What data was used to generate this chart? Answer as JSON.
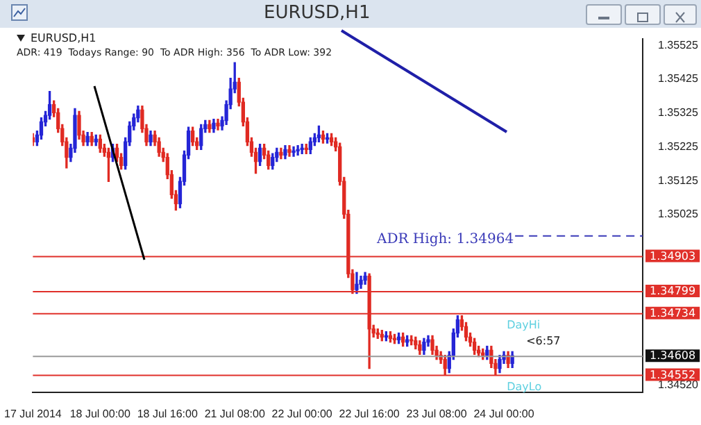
{
  "chart_data": {
    "type": "candlestick",
    "title": "EURUSD,H1",
    "subtitle": "ADR: 419  Todays Range: 90  To ADR High: 356  To ADR Low: 392",
    "categories": [
      "17 Jul 2014",
      null,
      null,
      null,
      null,
      null,
      null,
      null,
      null,
      null,
      null,
      null,
      null,
      null,
      null,
      null,
      "18 Jul 00:00",
      null,
      null,
      null,
      null,
      null,
      null,
      null,
      null,
      null,
      null,
      null,
      null,
      null,
      null,
      null,
      "18 Jul 16:00",
      null,
      null,
      null,
      null,
      null,
      null,
      null,
      null,
      null,
      null,
      null,
      null,
      null,
      null,
      null,
      "21 Jul 08:00",
      null,
      null,
      null,
      null,
      null,
      null,
      null,
      null,
      null,
      null,
      null,
      null,
      null,
      null,
      null,
      "22 Jul 00:00",
      null,
      null,
      null,
      null,
      null,
      null,
      null,
      null,
      null,
      null,
      null,
      null,
      null,
      null,
      null,
      "22 Jul 16:00",
      null,
      null,
      null,
      null,
      null,
      null,
      null,
      null,
      null,
      null,
      null,
      null,
      null,
      null,
      null,
      "23 Jul 08:00",
      null,
      null,
      null,
      null,
      null,
      null,
      null,
      null,
      null,
      null,
      null,
      null,
      null,
      null,
      null,
      "24 Jul 00:00",
      null,
      null,
      null,
      null,
      null,
      null,
      null,
      null,
      null,
      null,
      null,
      null,
      null,
      null,
      null,
      null,
      null,
      null,
      null,
      null,
      null,
      null,
      null,
      null,
      null,
      null,
      null,
      null,
      null,
      null,
      null,
      null,
      null
    ],
    "ohlc": [
      [
        1.35252,
        1.35264,
        1.35229,
        1.3524
      ],
      [
        1.3524,
        1.35272,
        1.35229,
        1.3526
      ],
      [
        1.3526,
        1.35311,
        1.35248,
        1.35299
      ],
      [
        1.35299,
        1.3533,
        1.35287,
        1.35318
      ],
      [
        1.35318,
        1.35389,
        1.35307,
        1.3535
      ],
      [
        1.3535,
        1.35361,
        1.35314,
        1.35326
      ],
      [
        1.35326,
        1.35338,
        1.35268,
        1.35279
      ],
      [
        1.35279,
        1.35291,
        1.35229,
        1.3524
      ],
      [
        1.3524,
        1.35252,
        1.35163,
        1.35194
      ],
      [
        1.35194,
        1.35233,
        1.35182,
        1.35221
      ],
      [
        1.35221,
        1.35338,
        1.35209,
        1.35318
      ],
      [
        1.35318,
        1.3533,
        1.35248,
        1.3526
      ],
      [
        1.3526,
        1.35272,
        1.35229,
        1.3524
      ],
      [
        1.3524,
        1.35268,
        1.35229,
        1.35256
      ],
      [
        1.35256,
        1.35268,
        1.35229,
        1.3524
      ],
      [
        1.3524,
        1.3526,
        1.35229,
        1.35248
      ],
      [
        1.35248,
        1.3526,
        1.35209,
        1.35221
      ],
      [
        1.35221,
        1.35233,
        1.35197,
        1.35209
      ],
      [
        1.35209,
        1.35221,
        1.35123,
        1.35194
      ],
      [
        1.35194,
        1.35233,
        1.35182,
        1.35221
      ],
      [
        1.35221,
        1.35233,
        1.35182,
        1.35194
      ],
      [
        1.35194,
        1.35205,
        1.35159,
        1.3517
      ],
      [
        1.3517,
        1.35252,
        1.35159,
        1.3524
      ],
      [
        1.3524,
        1.35299,
        1.35229,
        1.35287
      ],
      [
        1.35287,
        1.35322,
        1.35275,
        1.35311
      ],
      [
        1.35311,
        1.35346,
        1.35299,
        1.35334
      ],
      [
        1.35334,
        1.35346,
        1.35268,
        1.35279
      ],
      [
        1.35279,
        1.35291,
        1.35229,
        1.3524
      ],
      [
        1.3524,
        1.35272,
        1.35229,
        1.3526
      ],
      [
        1.3526,
        1.35272,
        1.35229,
        1.3524
      ],
      [
        1.3524,
        1.35252,
        1.35197,
        1.35209
      ],
      [
        1.35209,
        1.35221,
        1.35182,
        1.35194
      ],
      [
        1.35194,
        1.35205,
        1.35131,
        1.35143
      ],
      [
        1.35143,
        1.35155,
        1.35073,
        1.35084
      ],
      [
        1.35084,
        1.35096,
        1.35038,
        1.35057
      ],
      [
        1.35057,
        1.35135,
        1.35045,
        1.35123
      ],
      [
        1.35123,
        1.35213,
        1.35112,
        1.35201
      ],
      [
        1.35201,
        1.35283,
        1.3519,
        1.35272
      ],
      [
        1.35272,
        1.35283,
        1.35229,
        1.3524
      ],
      [
        1.3524,
        1.35252,
        1.35217,
        1.35229
      ],
      [
        1.35229,
        1.35291,
        1.35217,
        1.35279
      ],
      [
        1.35279,
        1.35303,
        1.35268,
        1.35291
      ],
      [
        1.35291,
        1.35303,
        1.35268,
        1.35279
      ],
      [
        1.35279,
        1.35307,
        1.35268,
        1.35295
      ],
      [
        1.35295,
        1.35307,
        1.35275,
        1.35287
      ],
      [
        1.35287,
        1.35314,
        1.35275,
        1.35303
      ],
      [
        1.35303,
        1.35361,
        1.35291,
        1.3535
      ],
      [
        1.3535,
        1.35428,
        1.35338,
        1.35396
      ],
      [
        1.35396,
        1.35474,
        1.35385,
        1.35416
      ],
      [
        1.35416,
        1.35428,
        1.35346,
        1.35357
      ],
      [
        1.35357,
        1.35369,
        1.35287,
        1.35299
      ],
      [
        1.35299,
        1.35311,
        1.35229,
        1.3524
      ],
      [
        1.3524,
        1.35252,
        1.35197,
        1.35209
      ],
      [
        1.35209,
        1.35221,
        1.35147,
        1.35182
      ],
      [
        1.35182,
        1.35233,
        1.3517,
        1.35221
      ],
      [
        1.35221,
        1.35233,
        1.3519,
        1.35201
      ],
      [
        1.35201,
        1.35213,
        1.35159,
        1.3517
      ],
      [
        1.3517,
        1.35205,
        1.35159,
        1.35194
      ],
      [
        1.35194,
        1.35221,
        1.35182,
        1.35209
      ],
      [
        1.35209,
        1.35221,
        1.3519,
        1.35201
      ],
      [
        1.35201,
        1.35229,
        1.3519,
        1.35217
      ],
      [
        1.35217,
        1.35229,
        1.35197,
        1.35209
      ],
      [
        1.35209,
        1.35225,
        1.35197,
        1.35213
      ],
      [
        1.35213,
        1.35229,
        1.35201,
        1.35217
      ],
      [
        1.35217,
        1.35233,
        1.35205,
        1.35221
      ],
      [
        1.35221,
        1.35233,
        1.35205,
        1.35217
      ],
      [
        1.35217,
        1.35252,
        1.35205,
        1.3524
      ],
      [
        1.3524,
        1.35264,
        1.35229,
        1.35252
      ],
      [
        1.35252,
        1.35287,
        1.3524,
        1.3526
      ],
      [
        1.3526,
        1.35272,
        1.35236,
        1.35248
      ],
      [
        1.35248,
        1.35264,
        1.35236,
        1.35252
      ],
      [
        1.35252,
        1.35264,
        1.35229,
        1.3524
      ],
      [
        1.3524,
        1.35252,
        1.35213,
        1.35225
      ],
      [
        1.35225,
        1.35236,
        1.35112,
        1.35123
      ],
      [
        1.35123,
        1.35135,
        1.35014,
        1.35026
      ],
      [
        1.35026,
        1.35038,
        1.34839,
        1.3485
      ],
      [
        1.3485,
        1.34862,
        1.34792,
        1.34803
      ],
      [
        1.34803,
        1.34854,
        1.34792,
        1.34819
      ],
      [
        1.34819,
        1.34843,
        1.34807,
        1.34831
      ],
      [
        1.34831,
        1.34854,
        1.34819,
        1.34843
      ],
      [
        1.34843,
        1.3485,
        1.3457,
        1.34687
      ],
      [
        1.34687,
        1.34698,
        1.34663,
        1.34675
      ],
      [
        1.34675,
        1.34687,
        1.34659,
        1.34671
      ],
      [
        1.34671,
        1.34683,
        1.34652,
        1.34663
      ],
      [
        1.34663,
        1.34679,
        1.34652,
        1.34667
      ],
      [
        1.34667,
        1.34679,
        1.34648,
        1.34659
      ],
      [
        1.34659,
        1.34671,
        1.34644,
        1.34655
      ],
      [
        1.34655,
        1.34675,
        1.34644,
        1.34663
      ],
      [
        1.34663,
        1.34675,
        1.34636,
        1.34648
      ],
      [
        1.34648,
        1.34667,
        1.34636,
        1.34655
      ],
      [
        1.34655,
        1.34667,
        1.3464,
        1.34652
      ],
      [
        1.34652,
        1.34663,
        1.34628,
        1.3464
      ],
      [
        1.3464,
        1.34652,
        1.34612,
        1.34624
      ],
      [
        1.34624,
        1.34659,
        1.34612,
        1.34648
      ],
      [
        1.34648,
        1.34667,
        1.34636,
        1.34655
      ],
      [
        1.34655,
        1.34667,
        1.34612,
        1.34624
      ],
      [
        1.34624,
        1.34636,
        1.34597,
        1.34609
      ],
      [
        1.34609,
        1.3462,
        1.34585,
        1.34597
      ],
      [
        1.34597,
        1.34609,
        1.3455,
        1.3457
      ],
      [
        1.3457,
        1.3462,
        1.34558,
        1.34609
      ],
      [
        1.34609,
        1.34687,
        1.34597,
        1.34675
      ],
      [
        1.34675,
        1.34726,
        1.34663,
        1.34714
      ],
      [
        1.34714,
        1.34726,
        1.34683,
        1.34694
      ],
      [
        1.34694,
        1.34706,
        1.34652,
        1.34663
      ],
      [
        1.34663,
        1.34675,
        1.34636,
        1.34648
      ],
      [
        1.34648,
        1.34659,
        1.34612,
        1.34624
      ],
      [
        1.34624,
        1.34636,
        1.34605,
        1.34616
      ],
      [
        1.34616,
        1.34628,
        1.34597,
        1.34609
      ],
      [
        1.34609,
        1.34636,
        1.34597,
        1.34624
      ],
      [
        1.34624,
        1.34636,
        1.34573,
        1.34585
      ],
      [
        1.34585,
        1.34597,
        1.3455,
        1.3457
      ],
      [
        1.3457,
        1.34609,
        1.34558,
        1.34597
      ],
      [
        1.34597,
        1.3462,
        1.34585,
        1.34609
      ],
      [
        1.34609,
        1.3462,
        1.34573,
        1.34585
      ],
      [
        1.34585,
        1.3462,
        1.34573,
        1.34608
      ],
      null,
      null,
      null,
      null,
      null,
      null,
      null,
      null,
      null,
      null,
      null,
      null,
      null,
      null,
      null,
      null,
      null,
      null,
      null,
      null,
      null,
      null,
      null,
      null,
      null,
      null,
      null,
      null,
      null,
      null,
      null
    ],
    "ylim": [
      1.345,
      1.35545
    ],
    "yticks": [
      1.35525,
      1.35425,
      1.35325,
      1.35225,
      1.35125,
      1.35025,
      {
        "value": 1.3452,
        "label": "1.34520"
      }
    ],
    "ref_lines": [
      {
        "axis": "y",
        "value": 1.34903,
        "label": "1.34903",
        "color": "#e0302a"
      },
      {
        "axis": "y",
        "value": 1.34799,
        "label": "1.34799",
        "color": "#e0302a"
      },
      {
        "axis": "y",
        "value": 1.34734,
        "label": "1.34734",
        "color": "#e0302a"
      },
      {
        "axis": "y",
        "value": 1.34608,
        "label": "1.34608",
        "color": "#9a9a9a"
      },
      {
        "axis": "y",
        "value": 1.34552,
        "label": "1.34552",
        "color": "#e0302a"
      },
      {
        "axis": "y",
        "value": 1.34964,
        "label": "ADR High: 1.34964",
        "color": "#3a3ab8",
        "line_style": "dashed"
      }
    ],
    "annotations": [
      "EURUSD,H1",
      "<6:57",
      {
        "text": "DayHi",
        "y": 1.34734
      },
      {
        "text": "DayLo",
        "y": 1.34552
      }
    ]
  }
}
